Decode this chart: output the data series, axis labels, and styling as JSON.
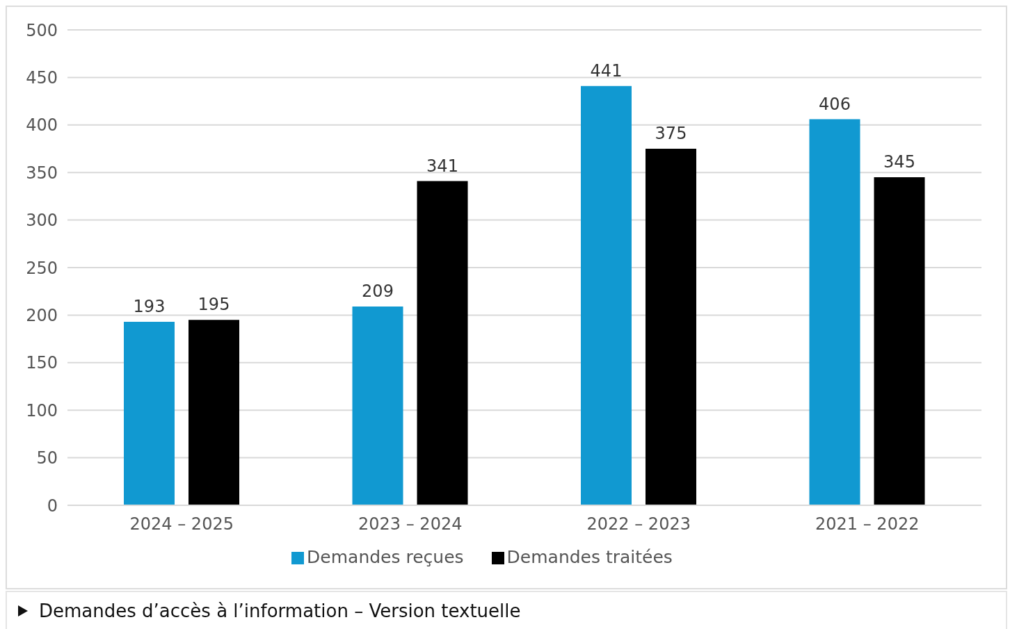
{
  "chart_data": {
    "type": "bar",
    "categories": [
      "2024 – 2025",
      "2023 – 2024",
      "2022 – 2023",
      "2021 – 2022"
    ],
    "series": [
      {
        "name": "Demandes reçues",
        "color": "#1199d1",
        "values": [
          193,
          209,
          441,
          406
        ]
      },
      {
        "name": "Demandes traitées",
        "color": "#000000",
        "values": [
          195,
          341,
          375,
          345
        ]
      }
    ],
    "ylim": [
      0,
      500
    ],
    "yticks": [
      0,
      50,
      100,
      150,
      200,
      250,
      300,
      350,
      400,
      450,
      500
    ],
    "grid": "y",
    "legend": "bottom",
    "data_labels": true,
    "annotations": [
      "Demandes d’accès à l’information – Version textuelle"
    ]
  }
}
